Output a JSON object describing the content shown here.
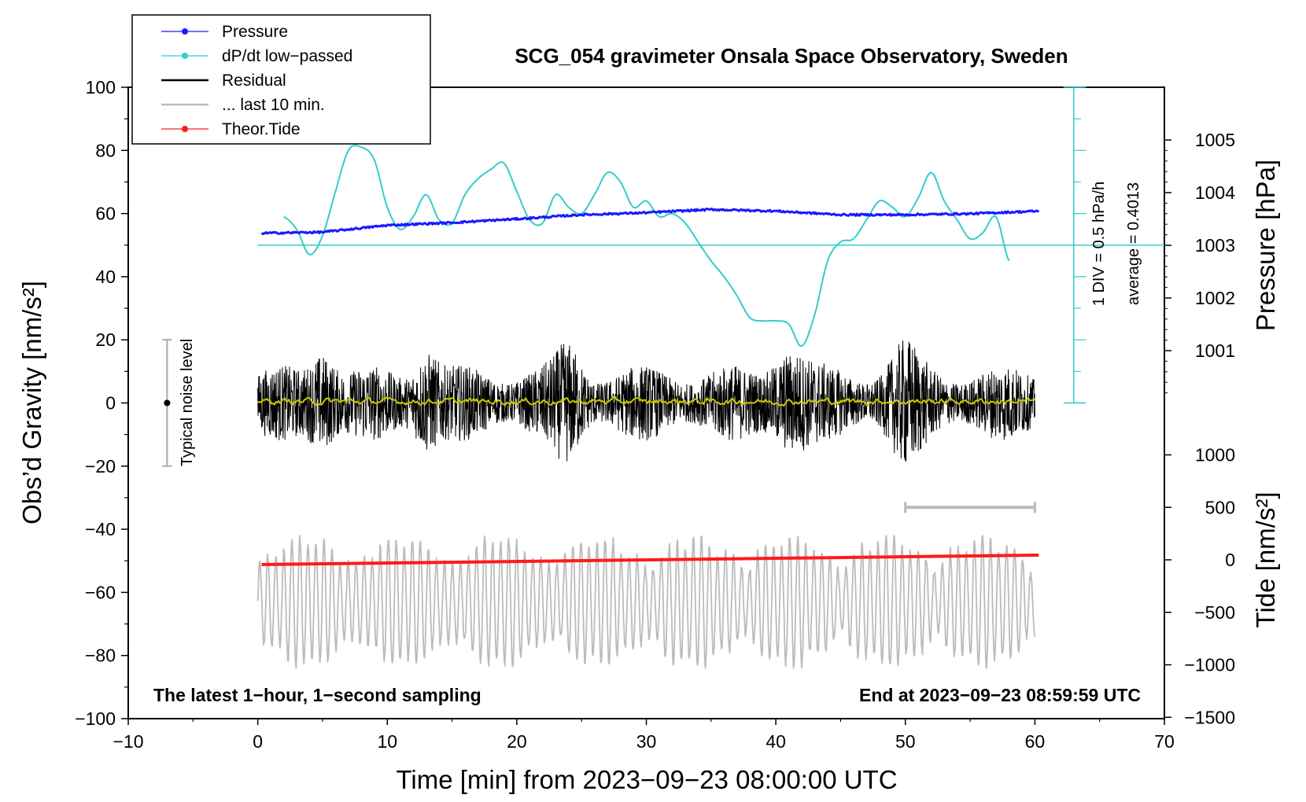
{
  "chart_data": {
    "type": "line",
    "title": "SCG_054 gravimeter Onsala Space Observatory, Sweden",
    "xlabel": "Time [min] from 2023−09−23 08:00:00 UTC",
    "ylabel_left": "Obs’d Gravity [nm/s²]",
    "ylabel_right_top": "Pressure [hPa]",
    "ylabel_right_bottom": "Tide [nm/s²]",
    "xlim": [
      -10,
      70
    ],
    "ylim_left": [
      -100,
      100
    ],
    "x_ticks": [
      "−10",
      "0",
      "10",
      "20",
      "30",
      "40",
      "50",
      "60",
      "70"
    ],
    "y_left_ticks": [
      "100",
      "80",
      "60",
      "40",
      "20",
      "0",
      "−20",
      "−40",
      "−60",
      "−80",
      "−100"
    ],
    "pressure_ticks": [
      "1005",
      "1004",
      "1003",
      "1002",
      "1001"
    ],
    "tide_ticks": [
      "1000",
      "500",
      "0",
      "−500",
      "−1000",
      "−1500"
    ],
    "legend": [
      {
        "label": "Pressure",
        "color": "#1a1aff",
        "style": "line-dot"
      },
      {
        "label": "dP/dt low−passed",
        "color": "#33cccc",
        "style": "line-dot"
      },
      {
        "label": "Residual",
        "color": "#000000",
        "style": "line"
      },
      {
        "label": "... last 10 min.",
        "color": "#bbbbbb",
        "style": "line"
      },
      {
        "label": "Theor.Tide",
        "color": "#ff1a1a",
        "style": "line-dot"
      }
    ],
    "annotations": {
      "bottom_left": "The latest 1−hour, 1−second sampling",
      "bottom_right": "End at 2023−09−23 08:59:59 UTC",
      "div_label": "1 DIV = 0.5 hPa/h",
      "average_label": "average = 0.4013",
      "noise_label": "Typical noise level"
    },
    "pressure_series": {
      "name": "Pressure",
      "units": "hPa",
      "color": "#1a1aff",
      "x": [
        0.3,
        5,
        10,
        15,
        20,
        25,
        30,
        35,
        40,
        45,
        50,
        55,
        60.3
      ],
      "y": [
        1003.23,
        1003.25,
        1003.38,
        1003.43,
        1003.5,
        1003.58,
        1003.62,
        1003.68,
        1003.65,
        1003.58,
        1003.58,
        1003.6,
        1003.65
      ]
    },
    "dpdt_series": {
      "name": "dP/dt low−passed",
      "color": "#33cccc",
      "x": [
        2,
        3,
        4,
        5,
        6,
        7,
        8,
        9,
        10,
        11,
        12,
        13,
        14,
        15,
        16,
        17,
        18,
        19,
        20,
        21,
        22,
        23,
        24,
        25,
        26,
        27,
        28,
        29,
        30,
        31,
        32,
        33,
        34,
        35,
        36,
        37,
        38,
        39,
        40,
        41,
        42,
        43,
        44,
        45,
        46,
        47,
        48,
        49,
        50,
        51,
        52,
        53,
        54,
        55,
        56,
        57,
        58
      ],
      "y": [
        59,
        55,
        47,
        53,
        67,
        80,
        81,
        77,
        62,
        55,
        59,
        66,
        58,
        57,
        66,
        71,
        74,
        76,
        67,
        58,
        57,
        66,
        62,
        60,
        66,
        73,
        70,
        62,
        64,
        59,
        60,
        57,
        51,
        45,
        40,
        34,
        27,
        26,
        26,
        25,
        18,
        28,
        45,
        51,
        52,
        58,
        64,
        62,
        59,
        65,
        73,
        64,
        58,
        52,
        54,
        59,
        45
      ]
    },
    "residual_series": {
      "name": "Residual",
      "units": "nm/s²",
      "color": "#000000",
      "x_range": [
        0,
        60
      ],
      "y_range": [
        -29,
        35
      ],
      "mean": 0
    },
    "smoothed_residual_series": {
      "name": "Residual smoothed",
      "color": "#c8c800",
      "y_range": [
        -3,
        3
      ]
    },
    "last10_series": {
      "name": "... last 10 min.",
      "color": "#bbbbbb",
      "x_range": [
        0,
        60
      ],
      "y_range_left": [
        -84,
        -42
      ]
    },
    "tide_series": {
      "name": "Theor.Tide",
      "units": "nm/s²",
      "color": "#ff1a1a",
      "x": [
        0.3,
        60.3
      ],
      "y": [
        -45,
        45
      ]
    },
    "last10_bracket": {
      "x": [
        50,
        60
      ],
      "tide_level": 500
    },
    "divisions": {
      "count": 10,
      "unit": "0.5 hPa/h",
      "zero_y_left": 50
    },
    "noise_bar": {
      "x": -7,
      "y_center": 0,
      "y_range": [
        -20,
        20
      ]
    }
  }
}
